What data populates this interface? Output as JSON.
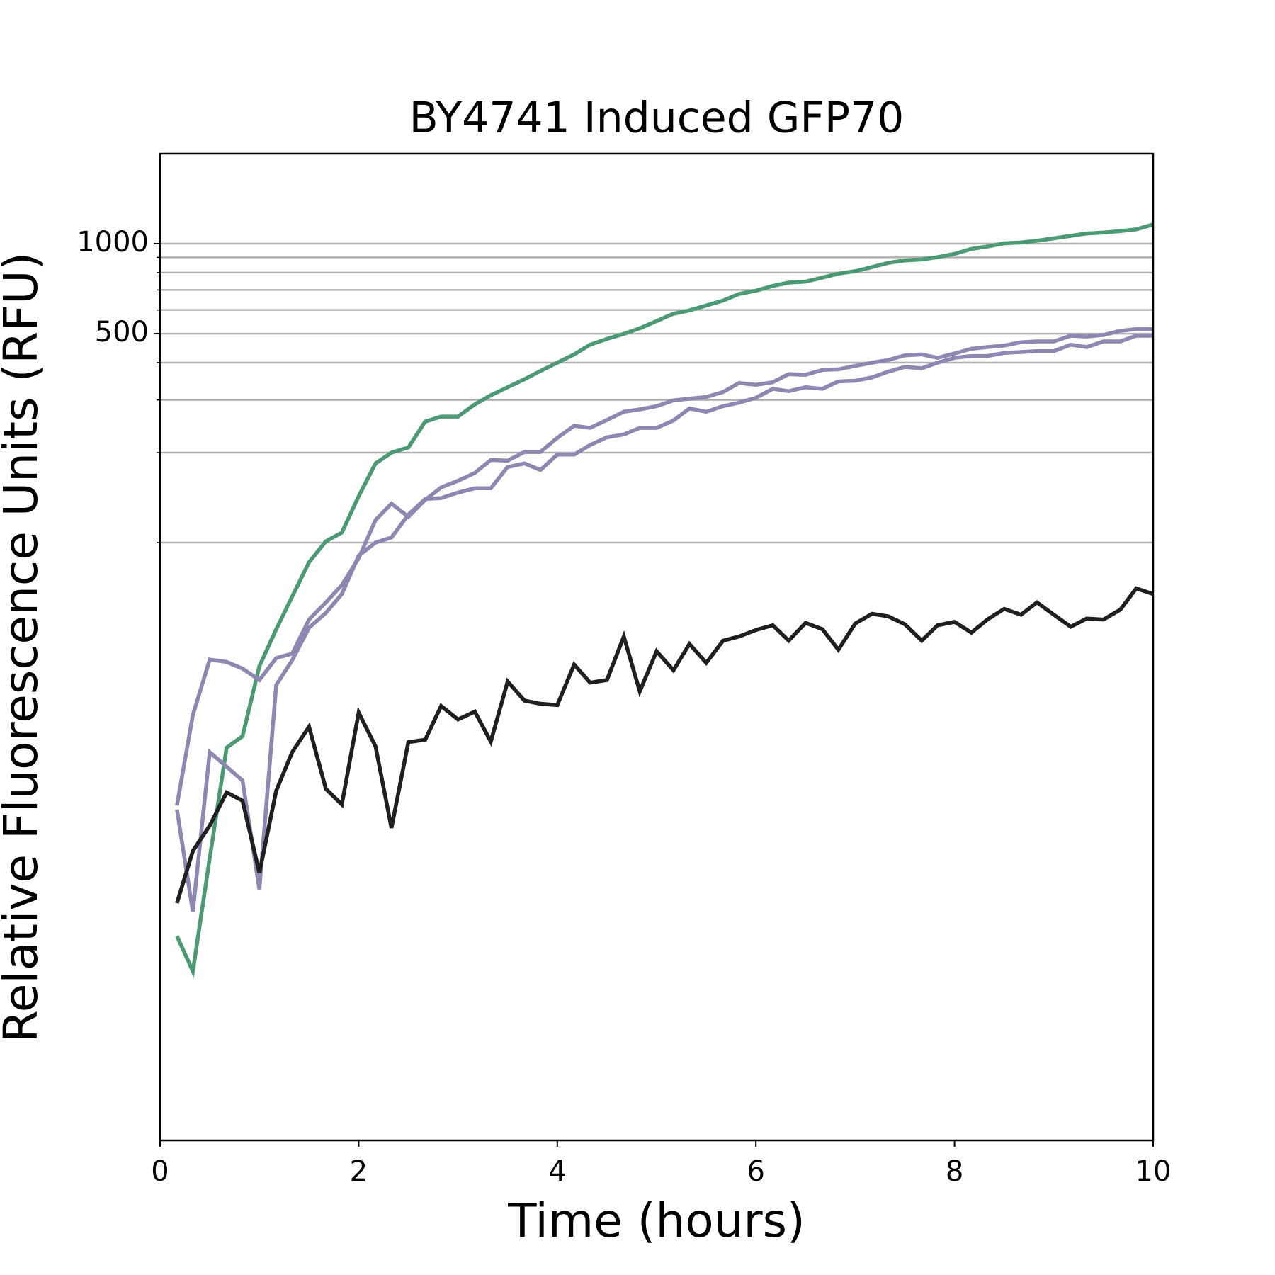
{
  "chart_data": {
    "type": "line",
    "title": "BY4741 Induced GFP70",
    "xlabel": "Time (hours)",
    "ylabel": "Relative Fluorescence Units (RFU)",
    "x": [
      0.17,
      0.33,
      0.5,
      0.67,
      0.83,
      1,
      1.17,
      1.33,
      1.5,
      1.67,
      1.83,
      2,
      2.17,
      2.33,
      2.5,
      2.67,
      2.83,
      3,
      3.17,
      3.33,
      3.5,
      3.67,
      3.83,
      4,
      4.17,
      4.33,
      4.5,
      4.67,
      4.83,
      5,
      5.17,
      5.33,
      5.5,
      5.67,
      5.83,
      6,
      6.17,
      6.33,
      6.5,
      6.67,
      6.83,
      7,
      7.17,
      7.33,
      7.5,
      7.67,
      7.83,
      8,
      8.17,
      8.33,
      8.5,
      8.67,
      8.83,
      9,
      9.17,
      9.33,
      9.5,
      9.67,
      9.83,
      10
    ],
    "series": [
      {
        "color": "#4c9a73",
        "values": [
          4.83,
          3.68,
          8.79,
          20.6,
          22.5,
          38.6,
          51.3,
          66.0,
          86.0,
          101,
          108,
          143,
          184,
          200,
          208,
          254,
          264,
          264,
          290,
          311,
          331,
          352,
          375,
          400,
          426,
          459,
          480,
          499,
          521,
          551,
          583,
          598,
          621,
          645,
          679,
          696,
          722,
          741,
          746,
          770,
          794,
          809,
          835,
          862,
          879,
          885,
          901,
          924,
          960,
          978,
          1003,
          1009,
          1023,
          1042,
          1062,
          1082,
          1089,
          1102,
          1117,
          1159
        ]
      },
      {
        "color": "#8e87b2",
        "values": [
          13.2,
          26.5,
          40.6,
          39.9,
          37.9,
          34.7,
          41.1,
          42.5,
          55.3,
          63.1,
          72.1,
          88.7,
          119,
          135,
          122,
          139,
          153,
          161,
          171,
          189,
          188,
          201,
          201,
          224,
          246,
          242,
          257,
          274,
          279,
          286,
          299,
          303,
          307,
          319,
          342,
          337,
          344,
          366,
          364,
          378,
          380,
          390,
          400,
          408,
          423,
          426,
          415,
          429,
          445,
          451,
          456,
          468,
          471,
          471,
          492,
          489,
          495,
          511,
          518,
          518
        ]
      },
      {
        "color": "#8e87b2",
        "values": [
          12.8,
          5.83,
          19.9,
          17.8,
          16.0,
          6.92,
          33.4,
          40.4,
          51.9,
          58.2,
          67.3,
          90.4,
          100,
          104,
          124,
          140,
          141,
          147,
          152,
          152,
          179,
          184,
          175,
          197,
          197,
          212,
          225,
          230,
          242,
          242,
          256,
          281,
          274,
          286,
          294,
          305,
          327,
          321,
          331,
          327,
          346,
          348,
          357,
          373,
          387,
          383,
          400,
          415,
          421,
          421,
          431,
          434,
          437,
          437,
          459,
          451,
          471,
          471,
          492,
          492
        ]
      },
      {
        "color": "#1f1f1f",
        "values": [
          6.22,
          9.3,
          11.3,
          14.6,
          13.7,
          7.85,
          14.8,
          19.9,
          24.2,
          15.0,
          13.3,
          27.0,
          20.8,
          11.1,
          21.5,
          21.9,
          28.4,
          25.6,
          27.2,
          21.6,
          34.3,
          29.6,
          28.9,
          28.6,
          39.1,
          34.0,
          34.7,
          48.5,
          31.8,
          43.3,
          37.4,
          45.8,
          39.6,
          47.0,
          48.5,
          51.0,
          52.9,
          47.0,
          53.9,
          51.3,
          43.8,
          53.6,
          57.8,
          56.7,
          53.3,
          47.0,
          52.9,
          54.3,
          50.0,
          55.3,
          60.0,
          57.4,
          63.1,
          57.4,
          52.3,
          55.7,
          55.3,
          59.7,
          70.3,
          67.3
        ]
      }
    ],
    "xlim": [
      0,
      10
    ],
    "xticks": [
      0,
      2,
      4,
      6,
      8,
      10
    ],
    "ylim": [
      1,
      2000
    ],
    "ylog": true,
    "yticks": [
      500,
      1000
    ],
    "minor_yticks": [
      100,
      200,
      300,
      400,
      600,
      700,
      800,
      900
    ],
    "grid": true
  }
}
